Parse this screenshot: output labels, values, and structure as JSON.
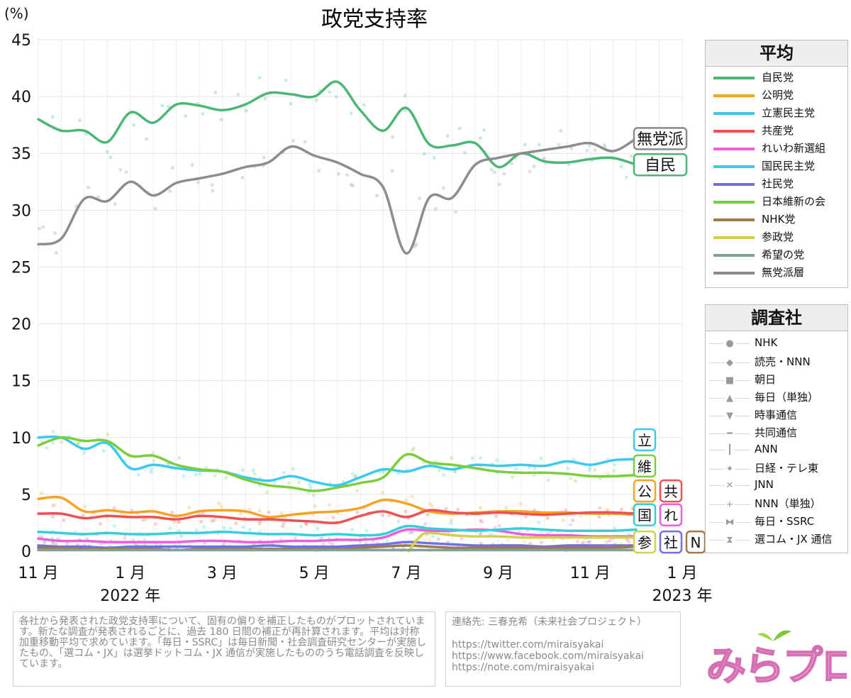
{
  "chart_data": {
    "type": "line",
    "title": "政党支持率",
    "ylabel": "(%)",
    "ylim": [
      0,
      45
    ],
    "yticks": [
      "0",
      "5",
      "10",
      "15",
      "20",
      "25",
      "30",
      "35",
      "40",
      "45"
    ],
    "x_month_ticks": [
      {
        "label": "11 月",
        "t": 0
      },
      {
        "label": "1 月",
        "t": 2
      },
      {
        "label": "3 月",
        "t": 4
      },
      {
        "label": "5 月",
        "t": 6
      },
      {
        "label": "7 月",
        "t": 8
      },
      {
        "label": "9 月",
        "t": 10
      },
      {
        "label": "11 月",
        "t": 12
      },
      {
        "label": "1 月",
        "t": 14
      }
    ],
    "x_year_labels": [
      {
        "label": "2022 年",
        "t": 2
      },
      {
        "label": "2023 年",
        "t": 14
      }
    ],
    "xlim": [
      0,
      14
    ],
    "series": [
      {
        "name": "自民党",
        "color": "#4cb677",
        "x": [
          0,
          0.5,
          1,
          1.5,
          2,
          2.5,
          3,
          3.5,
          4,
          4.5,
          5,
          5.5,
          6,
          6.5,
          7,
          7.5,
          8,
          8.5,
          9,
          9.5,
          10,
          10.5,
          11,
          11.5,
          12,
          12.5,
          13
        ],
        "values": [
          38,
          37,
          37,
          36,
          38.6,
          37.7,
          39.3,
          39.2,
          38.8,
          39.3,
          40.3,
          40.2,
          40,
          41.3,
          38.8,
          37,
          39,
          35.8,
          35.7,
          35.9,
          33.8,
          35,
          34.3,
          34.2,
          34.5,
          34.6,
          34
        ]
      },
      {
        "name": "公明党",
        "color": "#f5a225",
        "x": [
          0,
          0.5,
          1,
          1.5,
          2,
          2.5,
          3,
          3.5,
          4,
          4.5,
          5,
          5.5,
          6,
          6.5,
          7,
          7.5,
          8,
          8.5,
          9,
          9.5,
          10,
          10.5,
          11,
          11.5,
          12,
          12.5,
          13
        ],
        "values": [
          4.6,
          4.7,
          3.5,
          3.6,
          3.4,
          3.5,
          3.1,
          3.5,
          3.6,
          3.5,
          3,
          3.2,
          3.4,
          3.5,
          3.8,
          4.5,
          4.2,
          3.5,
          3.3,
          3.4,
          3.5,
          3.5,
          3.4,
          3.4,
          3.3,
          3.3,
          3.2
        ]
      },
      {
        "name": "立憲民主党",
        "color": "#3bc9ef",
        "x": [
          0,
          0.5,
          1,
          1.5,
          2,
          2.5,
          3,
          3.5,
          4,
          4.5,
          5,
          5.5,
          6,
          6.5,
          7,
          7.5,
          8,
          8.5,
          9,
          9.5,
          10,
          10.5,
          11,
          11.5,
          12,
          12.5,
          13
        ],
        "values": [
          10,
          10,
          9,
          9.5,
          7.3,
          7.6,
          7.3,
          7.1,
          7,
          6.5,
          6.2,
          6.6,
          6.1,
          5.8,
          6.5,
          7.2,
          7,
          7.5,
          7.2,
          7.6,
          7.5,
          7.6,
          7.5,
          7.9,
          7.6,
          8,
          8.1
        ]
      },
      {
        "name": "共産党",
        "color": "#ee5151",
        "x": [
          0,
          0.5,
          1,
          1.5,
          2,
          2.5,
          3,
          3.5,
          4,
          4.5,
          5,
          5.5,
          6,
          6.5,
          7,
          7.5,
          8,
          8.5,
          9,
          9.5,
          10,
          10.5,
          11,
          11.5,
          12,
          12.5,
          13
        ],
        "values": [
          3.3,
          3.3,
          2.9,
          3.1,
          3,
          3,
          2.8,
          3.1,
          3,
          2.8,
          2.8,
          2.7,
          2.6,
          2.5,
          3.1,
          3.5,
          3,
          3.6,
          3.4,
          3.3,
          3.4,
          3.3,
          3.2,
          3.3,
          3.4,
          3.4,
          3.3
        ]
      },
      {
        "name": "れいわ新選組",
        "color": "#f05cdc",
        "x": [
          0,
          0.5,
          1,
          1.5,
          2,
          2.5,
          3,
          3.5,
          4,
          4.5,
          5,
          5.5,
          6,
          6.5,
          7,
          7.5,
          8,
          8.5,
          9,
          9.5,
          10,
          10.5,
          11,
          11.5,
          12,
          12.5,
          13
        ],
        "values": [
          1.1,
          0.9,
          0.9,
          0.8,
          0.8,
          0.8,
          0.8,
          0.9,
          0.9,
          0.8,
          0.8,
          0.9,
          0.9,
          1,
          1,
          1.2,
          1.9,
          1.8,
          1.8,
          1.9,
          1.8,
          1.5,
          1.4,
          1.4,
          1.3,
          1.3,
          1.3
        ]
      },
      {
        "name": "国民民主党",
        "color": "#36cfd6",
        "x": [
          0,
          0.5,
          1,
          1.5,
          2,
          2.5,
          3,
          3.5,
          4,
          4.5,
          5,
          5.5,
          6,
          6.5,
          7,
          7.5,
          8,
          8.5,
          9,
          9.5,
          10,
          10.5,
          11,
          11.5,
          12,
          12.5,
          13
        ],
        "values": [
          1.7,
          1.6,
          1.5,
          1.6,
          1.5,
          1.5,
          1.6,
          1.6,
          1.7,
          1.6,
          1.5,
          1.5,
          1.4,
          1.5,
          1.4,
          1.5,
          2.2,
          2,
          1.9,
          1.8,
          1.9,
          2,
          1.9,
          1.8,
          1.8,
          1.8,
          1.9
        ]
      },
      {
        "name": "社民党",
        "color": "#7070e8",
        "x": [
          0,
          0.5,
          1,
          1.5,
          2,
          2.5,
          3,
          3.5,
          4,
          4.5,
          5,
          5.5,
          6,
          6.5,
          7,
          7.5,
          8,
          8.5,
          9,
          9.5,
          10,
          10.5,
          11,
          11.5,
          12,
          12.5,
          13
        ],
        "values": [
          0.5,
          0.4,
          0.4,
          0.3,
          0.4,
          0.4,
          0.4,
          0.4,
          0.4,
          0.4,
          0.5,
          0.4,
          0.4,
          0.4,
          0.5,
          0.6,
          0.8,
          0.7,
          0.6,
          0.5,
          0.5,
          0.5,
          0.4,
          0.5,
          0.5,
          0.5,
          0.5
        ]
      },
      {
        "name": "日本維新の会",
        "color": "#7ccd3c",
        "x": [
          0,
          0.5,
          1,
          1.5,
          2,
          2.5,
          3,
          3.5,
          4,
          4.5,
          5,
          5.5,
          6,
          6.5,
          7,
          7.5,
          8,
          8.5,
          9,
          9.5,
          10,
          10.5,
          11,
          11.5,
          12,
          12.5,
          13
        ],
        "values": [
          9.3,
          10,
          9.7,
          9.7,
          8.4,
          8.4,
          7.6,
          7.2,
          7,
          6.3,
          5.8,
          5.6,
          5.3,
          5.6,
          6,
          6.5,
          8.5,
          7.8,
          7.6,
          7.3,
          7,
          6.9,
          6.9,
          6.8,
          6.6,
          6.6,
          6.7
        ]
      },
      {
        "name": "NHK党",
        "color": "#9c7a4b",
        "x": [
          0,
          0.5,
          1,
          1.5,
          2,
          2.5,
          3,
          3.5,
          4,
          4.5,
          5,
          5.5,
          6,
          6.5,
          7,
          7.5,
          8,
          8.5,
          9,
          9.5,
          10,
          10.5,
          11,
          11.5,
          12,
          12.5,
          13
        ],
        "values": [
          0.3,
          0.3,
          0.2,
          0.2,
          0.2,
          0.2,
          0.1,
          0.2,
          0.2,
          0.2,
          0.2,
          0.2,
          0.2,
          0.2,
          0.3,
          0.4,
          0.5,
          0.4,
          0.3,
          0.3,
          0.3,
          0.3,
          0.3,
          0.3,
          0.3,
          0.3,
          0.4
        ]
      },
      {
        "name": "参政党",
        "color": "#d2d24a",
        "x": [
          8.05,
          8.3,
          8.5,
          9,
          9.5,
          10,
          10.5,
          11,
          11.5,
          12,
          12.5,
          13
        ],
        "values": [
          0,
          1.3,
          1.6,
          1.4,
          1.3,
          1.3,
          1.2,
          1.2,
          1.2,
          1.2,
          1.2,
          1.2
        ]
      },
      {
        "name": "希望の党",
        "color": "#7fa39b",
        "x": [
          0,
          1,
          2,
          3,
          4,
          5,
          6,
          7,
          8,
          9,
          10,
          11,
          12,
          13
        ],
        "values": [
          0.1,
          0.1,
          0.1,
          0.1,
          0.1,
          0.1,
          0.1,
          0.1,
          0.1,
          0.1,
          0.1,
          0.1,
          0.1,
          0.1
        ]
      },
      {
        "name": "無党派層",
        "color": "#8c8c8c",
        "x": [
          0,
          0.5,
          1,
          1.5,
          2,
          2.5,
          3,
          3.5,
          4,
          4.5,
          5,
          5.5,
          6,
          6.5,
          7,
          7.5,
          8,
          8.5,
          9,
          9.5,
          10,
          10.5,
          11,
          11.5,
          12,
          12.5,
          13
        ],
        "values": [
          27,
          27.5,
          31,
          30.8,
          32.5,
          31.3,
          32.4,
          32.8,
          33.2,
          33.8,
          34.2,
          35.6,
          34.8,
          34.2,
          33.2,
          32,
          26.2,
          31.1,
          31.1,
          34,
          34.6,
          35,
          35.3,
          35.6,
          35.9,
          35.2,
          36.3
        ]
      }
    ],
    "end_labels": [
      {
        "label": "無党派",
        "color": "#8c8c8c",
        "value": 36.3
      },
      {
        "label": "自民",
        "color": "#4cb677",
        "value": 34.0
      },
      {
        "label": "立",
        "color": "#3bc9ef",
        "value": 9.8
      },
      {
        "label": "維",
        "color": "#7ccd3c",
        "value": 7.5
      },
      {
        "label": "公",
        "color": "#f5a225",
        "value": 5.3
      },
      {
        "label": "共",
        "color": "#ee5151",
        "value": 5.3
      },
      {
        "label": "国",
        "color": "#36cfd6",
        "value": 3.2
      },
      {
        "label": "れ",
        "color": "#f05cdc",
        "value": 3.2
      },
      {
        "label": "参",
        "color": "#d2d24a",
        "value": 0.8
      },
      {
        "label": "社",
        "color": "#7070e8",
        "value": 0.8
      },
      {
        "label": "N",
        "color": "#9c7a4b",
        "value": 0.8
      }
    ]
  },
  "legend_party": {
    "title": "平均",
    "items": [
      "自民党",
      "公明党",
      "立憲民主党",
      "共産党",
      "れいわ新選組",
      "国民民主党",
      "社民党",
      "日本維新の会",
      "NHK党",
      "参政党",
      "希望の党",
      "無党派層"
    ]
  },
  "legend_pollster": {
    "title": "調査社",
    "items": [
      {
        "symbol": "●",
        "label": "NHK"
      },
      {
        "symbol": "◆",
        "label": "読売・NNN"
      },
      {
        "symbol": "■",
        "label": "朝日"
      },
      {
        "symbol": "▲",
        "label": "毎日（単独）"
      },
      {
        "symbol": "▼",
        "label": "時事通信"
      },
      {
        "symbol": "━",
        "label": "共同通信"
      },
      {
        "symbol": "┃",
        "label": "ANN"
      },
      {
        "symbol": "✦",
        "label": "日経・テレ東"
      },
      {
        "symbol": "✕",
        "label": "JNN"
      },
      {
        "symbol": "+",
        "label": "NNN（単独）"
      },
      {
        "symbol": "⧓",
        "label": "毎日・SSRC"
      },
      {
        "symbol": "⧗",
        "label": "選コム・JX 通信"
      }
    ]
  },
  "note": {
    "text": "各社から発表された政党支持率について、固有の偏りを補正したものがプロットされています。新たな調査が発表されるごとに、過去 180 日間の補正が再計算されます。平均は対称加重移動平均で求めています。「毎日・SSRC」は毎日新聞・社会調査研究センターが実施したもの、「選コム・JX」は選挙ドットコム・JX 通信が実施したもののうち電話調査を反映しています。"
  },
  "contact": {
    "line1": "連絡先: 三春充希（未来社会プロジェクト）",
    "links": [
      "https://twitter.com/miraisyakai",
      "https://www.facebook.com/miraisyakai",
      "https://note.com/miraisyakai"
    ]
  },
  "logo": {
    "text": "みらプロ"
  }
}
